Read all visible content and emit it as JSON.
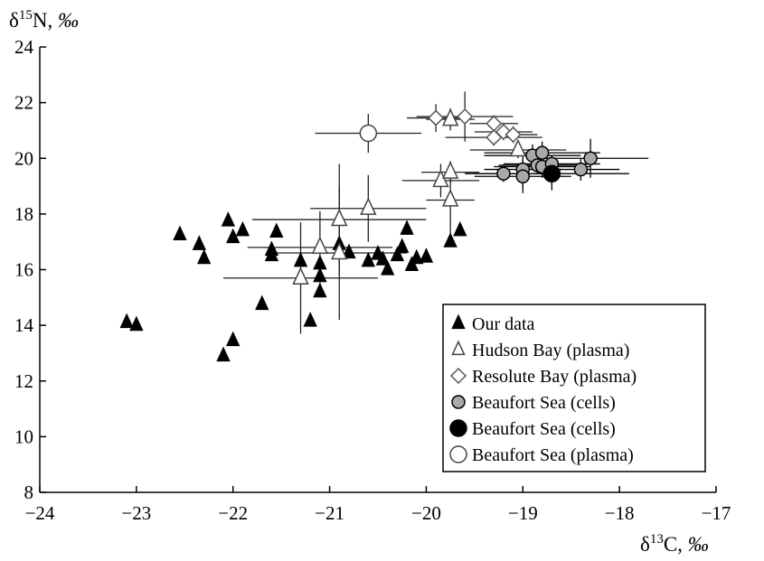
{
  "chart_data": {
    "type": "scatter",
    "xlabel_parts": [
      "δ",
      "13",
      "C, ",
      "‰"
    ],
    "ylabel_parts": [
      "δ",
      "15",
      "N, ",
      "‰"
    ],
    "xlim": [
      -24,
      -17
    ],
    "ylim": [
      8,
      24
    ],
    "x_ticks": [
      "−24",
      "−23",
      "−22",
      "−21",
      "−20",
      "−19",
      "−18",
      "−17"
    ],
    "x_tick_values": [
      -24,
      -23,
      -22,
      -21,
      -20,
      -19,
      -18,
      -17
    ],
    "y_ticks": [
      "8",
      "10",
      "12",
      "14",
      "16",
      "18",
      "20",
      "22",
      "24"
    ],
    "y_tick_values": [
      8,
      10,
      12,
      14,
      16,
      18,
      20,
      22,
      24
    ],
    "grid": false,
    "legend_position": "bottom-right",
    "series": [
      {
        "name": "Our data",
        "marker": "triangle",
        "fill": "#000000",
        "points": [
          {
            "x": -23.1,
            "y": 14.1
          },
          {
            "x": -23.0,
            "y": 14.0
          },
          {
            "x": -22.55,
            "y": 17.25
          },
          {
            "x": -22.35,
            "y": 16.9
          },
          {
            "x": -22.3,
            "y": 16.4
          },
          {
            "x": -22.05,
            "y": 17.75
          },
          {
            "x": -22.0,
            "y": 17.15
          },
          {
            "x": -21.9,
            "y": 17.4
          },
          {
            "x": -22.1,
            "y": 12.9
          },
          {
            "x": -22.0,
            "y": 13.45
          },
          {
            "x": -21.7,
            "y": 14.75
          },
          {
            "x": -21.6,
            "y": 16.7
          },
          {
            "x": -21.6,
            "y": 16.5
          },
          {
            "x": -21.55,
            "y": 17.35
          },
          {
            "x": -21.3,
            "y": 16.3
          },
          {
            "x": -21.2,
            "y": 14.15
          },
          {
            "x": -21.1,
            "y": 16.2
          },
          {
            "x": -21.1,
            "y": 15.75
          },
          {
            "x": -21.1,
            "y": 15.2
          },
          {
            "x": -20.9,
            "y": 16.9
          },
          {
            "x": -20.8,
            "y": 16.6
          },
          {
            "x": -20.6,
            "y": 16.3
          },
          {
            "x": -20.5,
            "y": 16.55
          },
          {
            "x": -20.45,
            "y": 16.35
          },
          {
            "x": -20.4,
            "y": 16.0
          },
          {
            "x": -20.3,
            "y": 16.5
          },
          {
            "x": -20.25,
            "y": 16.8
          },
          {
            "x": -20.2,
            "y": 17.45
          },
          {
            "x": -20.15,
            "y": 16.15
          },
          {
            "x": -20.1,
            "y": 16.4
          },
          {
            "x": -20.0,
            "y": 16.45
          },
          {
            "x": -19.75,
            "y": 17.0
          },
          {
            "x": -19.65,
            "y": 17.4
          }
        ]
      },
      {
        "name": "Hudson Bay (plasma)",
        "marker": "triangle",
        "fill": "#ffffff",
        "points": [
          {
            "x": -21.3,
            "y": 15.7,
            "xerr": 0.8,
            "yerr": 2.0
          },
          {
            "x": -21.1,
            "y": 16.8,
            "xerr": 0.75,
            "yerr": 1.3
          },
          {
            "x": -20.9,
            "y": 17.8,
            "xerr": 0.9,
            "yerr": 2.0
          },
          {
            "x": -20.9,
            "y": 16.6,
            "xerr": 0.7,
            "yerr": 2.4
          },
          {
            "x": -20.6,
            "y": 18.2,
            "xerr": 0.6,
            "yerr": 1.2
          },
          {
            "x": -19.85,
            "y": 19.2,
            "xerr": 0.4,
            "yerr": 0.6
          },
          {
            "x": -19.75,
            "y": 19.5,
            "xerr": 0.3,
            "yerr": 0.4
          },
          {
            "x": -19.75,
            "y": 18.5,
            "xerr": 0.25,
            "yerr": 1.2
          },
          {
            "x": -19.75,
            "y": 21.4,
            "xerr": 0.25,
            "yerr": 0.4
          },
          {
            "x": -19.05,
            "y": 20.3,
            "xerr": 0.5,
            "yerr": 0.3
          }
        ]
      },
      {
        "name": "Resolute Bay  (plasma)",
        "marker": "diamond",
        "fill": "#ffffff",
        "points": [
          {
            "x": -19.9,
            "y": 21.45,
            "xerr": 0.3,
            "yerr": 0.5
          },
          {
            "x": -19.6,
            "y": 21.5,
            "xerr": 0.5,
            "yerr": 0.9
          },
          {
            "x": -19.3,
            "y": 21.25,
            "xerr": 0.25,
            "yerr": 0.3
          },
          {
            "x": -19.3,
            "y": 20.75,
            "xerr": 0.5,
            "yerr": 0.3
          },
          {
            "x": -19.2,
            "y": 20.95,
            "xerr": 0.3,
            "yerr": 0.3
          },
          {
            "x": -19.1,
            "y": 20.85,
            "xerr": 0.25,
            "yerr": 0.3
          }
        ]
      },
      {
        "name": "Beaufort Sea (cells)",
        "marker": "circle",
        "fill": "#a9a9a9",
        "points": [
          {
            "x": -19.2,
            "y": 19.45,
            "xerr": 0.4,
            "yerr": 0.3
          },
          {
            "x": -19.0,
            "y": 19.6,
            "xerr": 0.4,
            "yerr": 0.6
          },
          {
            "x": -19.0,
            "y": 19.35,
            "xerr": 0.5,
            "yerr": 0.6
          },
          {
            "x": -18.9,
            "y": 20.1,
            "xerr": 0.5,
            "yerr": 0.4
          },
          {
            "x": -18.85,
            "y": 19.75,
            "xerr": 0.4,
            "yerr": 0.3
          },
          {
            "x": -18.8,
            "y": 20.2,
            "xerr": 0.6,
            "yerr": 0.4
          },
          {
            "x": -18.8,
            "y": 19.7,
            "xerr": 0.5,
            "yerr": 0.4
          },
          {
            "x": -18.7,
            "y": 19.8,
            "xerr": 0.5,
            "yerr": 0.3
          },
          {
            "x": -18.4,
            "y": 19.6,
            "xerr": 0.4,
            "yerr": 0.4
          },
          {
            "x": -18.3,
            "y": 20.0,
            "xerr": 0.6,
            "yerr": 0.7
          }
        ]
      },
      {
        "name": "Beaufort Sea (cells)",
        "marker": "circle",
        "fill": "#000000",
        "points": [
          {
            "x": -18.7,
            "y": 19.45,
            "xerr": 0.8,
            "yerr": 0.6
          }
        ]
      },
      {
        "name": "Beaufort Sea (plasma)",
        "marker": "circle",
        "fill": "#ffffff",
        "points": [
          {
            "x": -20.6,
            "y": 20.9,
            "xerr": 0.55,
            "yerr": 0.7
          }
        ]
      }
    ]
  }
}
